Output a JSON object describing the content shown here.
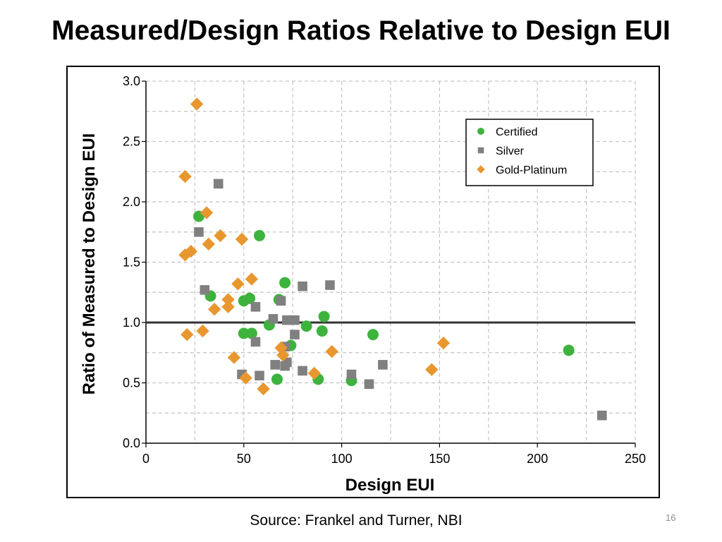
{
  "slide": {
    "title": "Measured/Design Ratios Relative to Design EUI",
    "source": "Source: Frankel and Turner, NBI",
    "page_number": "16"
  },
  "chart_data": {
    "type": "scatter",
    "title": "",
    "xlabel": "Design EUI",
    "ylabel": "Ratio of Measured to Design EUI",
    "xlim": [
      0,
      250
    ],
    "ylim": [
      0,
      3.0
    ],
    "x_ticks": [
      "0",
      "50",
      "100",
      "150",
      "200",
      "250"
    ],
    "x_tick_values": [
      0,
      50,
      100,
      150,
      200,
      250
    ],
    "y_ticks": [
      "0.0",
      "0.5",
      "1.0",
      "1.5",
      "2.0",
      "2.5",
      "3.0"
    ],
    "y_tick_values": [
      0,
      0.5,
      1.0,
      1.5,
      2.0,
      2.5,
      3.0
    ],
    "grid": true,
    "legend_position": "top-right",
    "reference_line": {
      "y": 1.0
    },
    "series": [
      {
        "name": "Certified",
        "marker": "circle",
        "color": "#3db33d",
        "points": [
          [
            27,
            1.88
          ],
          [
            33,
            1.22
          ],
          [
            58,
            1.72
          ],
          [
            50,
            1.18
          ],
          [
            53,
            1.2
          ],
          [
            71,
            1.33
          ],
          [
            68,
            1.19
          ],
          [
            63,
            0.98
          ],
          [
            50,
            0.91
          ],
          [
            54,
            0.91
          ],
          [
            74,
            0.81
          ],
          [
            82,
            0.97
          ],
          [
            90,
            0.93
          ],
          [
            91,
            1.05
          ],
          [
            116,
            0.9
          ],
          [
            67,
            0.53
          ],
          [
            88,
            0.53
          ],
          [
            105,
            0.52
          ],
          [
            216,
            0.77
          ]
        ]
      },
      {
        "name": "Silver",
        "marker": "square",
        "color": "#808080",
        "points": [
          [
            37,
            2.15
          ],
          [
            27,
            1.75
          ],
          [
            30,
            1.27
          ],
          [
            56,
            1.13
          ],
          [
            65,
            1.03
          ],
          [
            69,
            1.18
          ],
          [
            72,
            1.02
          ],
          [
            76,
            1.02
          ],
          [
            80,
            1.3
          ],
          [
            94,
            1.31
          ],
          [
            56,
            0.84
          ],
          [
            71,
            0.8
          ],
          [
            76,
            0.9
          ],
          [
            49,
            0.57
          ],
          [
            58,
            0.56
          ],
          [
            66,
            0.65
          ],
          [
            71,
            0.64
          ],
          [
            72,
            0.67
          ],
          [
            80,
            0.6
          ],
          [
            105,
            0.57
          ],
          [
            114,
            0.49
          ],
          [
            121,
            0.65
          ],
          [
            233,
            0.23
          ]
        ]
      },
      {
        "name": "Gold-Platinum",
        "marker": "diamond",
        "color": "#e8972f",
        "points": [
          [
            26,
            2.81
          ],
          [
            20,
            2.21
          ],
          [
            31,
            1.91
          ],
          [
            38,
            1.72
          ],
          [
            49,
            1.69
          ],
          [
            32,
            1.65
          ],
          [
            23,
            1.59
          ],
          [
            20,
            1.56
          ],
          [
            54,
            1.36
          ],
          [
            47,
            1.32
          ],
          [
            42,
            1.19
          ],
          [
            42,
            1.13
          ],
          [
            35,
            1.11
          ],
          [
            21,
            0.9
          ],
          [
            29,
            0.93
          ],
          [
            69,
            0.79
          ],
          [
            70,
            0.73
          ],
          [
            45,
            0.71
          ],
          [
            95,
            0.76
          ],
          [
            152,
            0.83
          ],
          [
            51,
            0.54
          ],
          [
            60,
            0.45
          ],
          [
            86,
            0.58
          ],
          [
            146,
            0.61
          ]
        ]
      }
    ]
  }
}
